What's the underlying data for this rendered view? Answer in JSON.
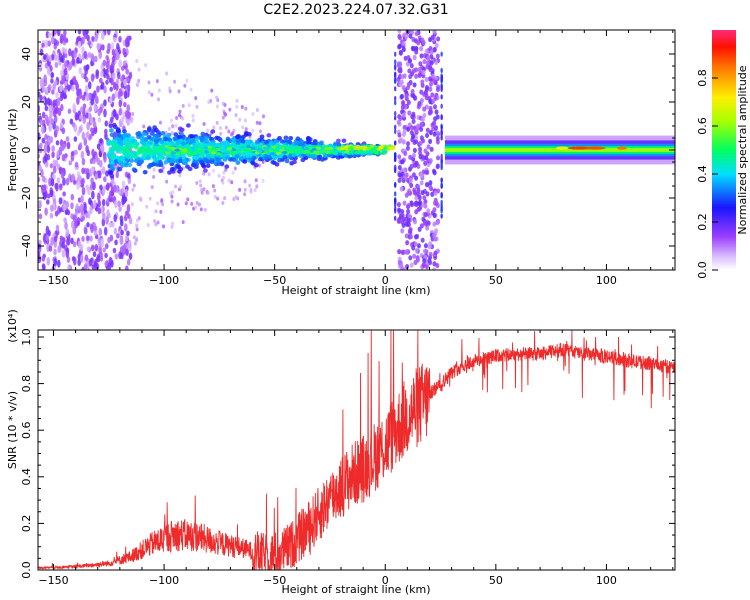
{
  "figure_title": "C2E2.2023.224.07.32.G31",
  "colors": {
    "snr_line": "#ee2a2a",
    "axis": "#000000",
    "background": "#ffffff"
  },
  "chart_data": [
    {
      "type": "heatmap",
      "title": "C2E2.2023.224.07.32.G31",
      "xlabel": "Height of straight line (km)",
      "ylabel": "Frequency (Hz)",
      "xlim": [
        -157,
        131
      ],
      "ylim": [
        -50,
        50
      ],
      "x_ticks": [
        -150,
        -100,
        -50,
        0,
        50,
        100
      ],
      "y_ticks": [
        -40,
        -20,
        0,
        20,
        40
      ],
      "colorbar": {
        "label": "Normalized spectral amplitude",
        "range": [
          0.0,
          1.0
        ],
        "ticks": [
          0.0,
          0.2,
          0.4,
          0.6,
          0.8
        ],
        "colormap": "rainbow"
      },
      "features": {
        "signal_center_hz": 0,
        "stable_signal_start_km": 27,
        "gap_band_km": [
          6,
          24
        ],
        "noisy_region_km": [
          -157,
          -115
        ]
      }
    },
    {
      "type": "line",
      "xlabel": "Height of straight line (km)",
      "ylabel": "SNR (10 * v/v)",
      "y_multiplier": "(x10⁴)",
      "xlim": [
        -157,
        131
      ],
      "ylim": [
        0,
        1.03
      ],
      "x_ticks": [
        -150,
        -100,
        -50,
        0,
        50,
        100
      ],
      "y_ticks": [
        0.0,
        0.2,
        0.4,
        0.6,
        0.8,
        1.0
      ],
      "series": [
        {
          "x": [
            -157,
            -140,
            -125,
            -115,
            -105,
            -95,
            -85,
            -75,
            -65,
            -55,
            -48,
            -42,
            -36,
            -30,
            -25,
            -20,
            -15,
            -10,
            -5,
            0,
            5,
            10,
            15,
            20,
            25,
            30,
            35,
            40,
            45,
            50,
            60,
            70,
            80,
            90,
            100,
            110,
            120,
            131
          ],
          "values": [
            0.01,
            0.015,
            0.03,
            0.06,
            0.12,
            0.16,
            0.15,
            0.12,
            0.1,
            0.07,
            0.08,
            0.12,
            0.18,
            0.25,
            0.32,
            0.37,
            0.42,
            0.45,
            0.5,
            0.55,
            0.62,
            0.68,
            0.72,
            0.76,
            0.8,
            0.85,
            0.88,
            0.9,
            0.91,
            0.92,
            0.93,
            0.93,
            0.95,
            0.93,
            0.92,
            0.9,
            0.89,
            0.87
          ]
        }
      ]
    }
  ]
}
